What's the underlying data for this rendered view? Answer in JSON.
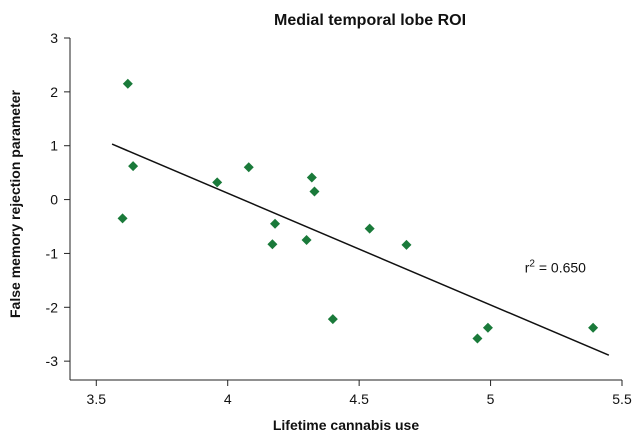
{
  "chart_data": {
    "type": "scatter",
    "title": "Medial temporal lobe ROI",
    "xlabel": "Lifetime cannabis use",
    "ylabel": "False memory rejection parameter",
    "xlim": [
      3.4,
      5.5
    ],
    "ylim": [
      -3.35,
      3.0
    ],
    "xticks": [
      3.5,
      4,
      4.5,
      5,
      5.5
    ],
    "xtick_labels": [
      "3.5",
      "4",
      "4.5",
      "5",
      "5.5"
    ],
    "yticks": [
      3,
      2,
      1,
      0,
      -1,
      -2,
      -3
    ],
    "ytick_labels": [
      "3",
      "2",
      "1",
      "0",
      "-1",
      "-2",
      "-3"
    ],
    "grid": false,
    "marker": "diamond",
    "marker_color": "#1a7a3a",
    "points": [
      {
        "x": 3.62,
        "y": 2.15
      },
      {
        "x": 3.64,
        "y": 0.62
      },
      {
        "x": 3.6,
        "y": -0.35
      },
      {
        "x": 3.96,
        "y": 0.32
      },
      {
        "x": 4.08,
        "y": 0.6
      },
      {
        "x": 4.18,
        "y": -0.45
      },
      {
        "x": 4.17,
        "y": -0.83
      },
      {
        "x": 4.3,
        "y": -0.75
      },
      {
        "x": 4.32,
        "y": 0.41
      },
      {
        "x": 4.33,
        "y": 0.15
      },
      {
        "x": 4.4,
        "y": -2.22
      },
      {
        "x": 4.54,
        "y": -0.54
      },
      {
        "x": 4.68,
        "y": -0.84
      },
      {
        "x": 4.95,
        "y": -2.58
      },
      {
        "x": 4.99,
        "y": -2.38
      },
      {
        "x": 5.39,
        "y": -2.38
      }
    ],
    "trendline": {
      "x": [
        3.56,
        5.45
      ],
      "y": [
        1.03,
        -2.89
      ]
    },
    "annotation": {
      "prefix": "r",
      "superscript": "2",
      "suffix": " = 0.650",
      "x": 5.13,
      "y": -1.35
    }
  }
}
